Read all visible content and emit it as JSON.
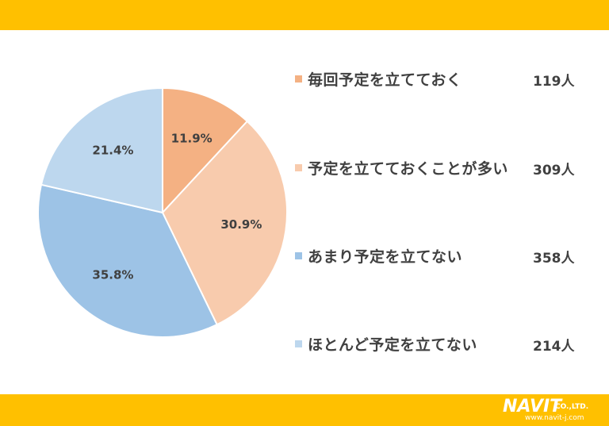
{
  "colors": {
    "banner": "#FFC000",
    "slice_1": "#F4B183",
    "slice_2": "#F8CBAD",
    "slice_3": "#9DC3E6",
    "slice_4": "#BDD7EE",
    "text": "#404040"
  },
  "chart_data": {
    "type": "pie",
    "categories": [
      "毎回予定を立てておく",
      "予定を立てておくことが多い",
      "あまり予定を立てない",
      "ほとんど予定を立てない"
    ],
    "values": [
      11.9,
      30.9,
      35.8,
      21.4
    ],
    "labels": [
      "11.9%",
      "30.9%",
      "35.8%",
      "21.4%"
    ],
    "counts": [
      "119人",
      "309人",
      "358人",
      "214人"
    ],
    "legend_position": "right"
  },
  "logo": {
    "brand": "NAVIT",
    "suffix": "CO.,LTD.",
    "url": "www.navit-j.com"
  }
}
